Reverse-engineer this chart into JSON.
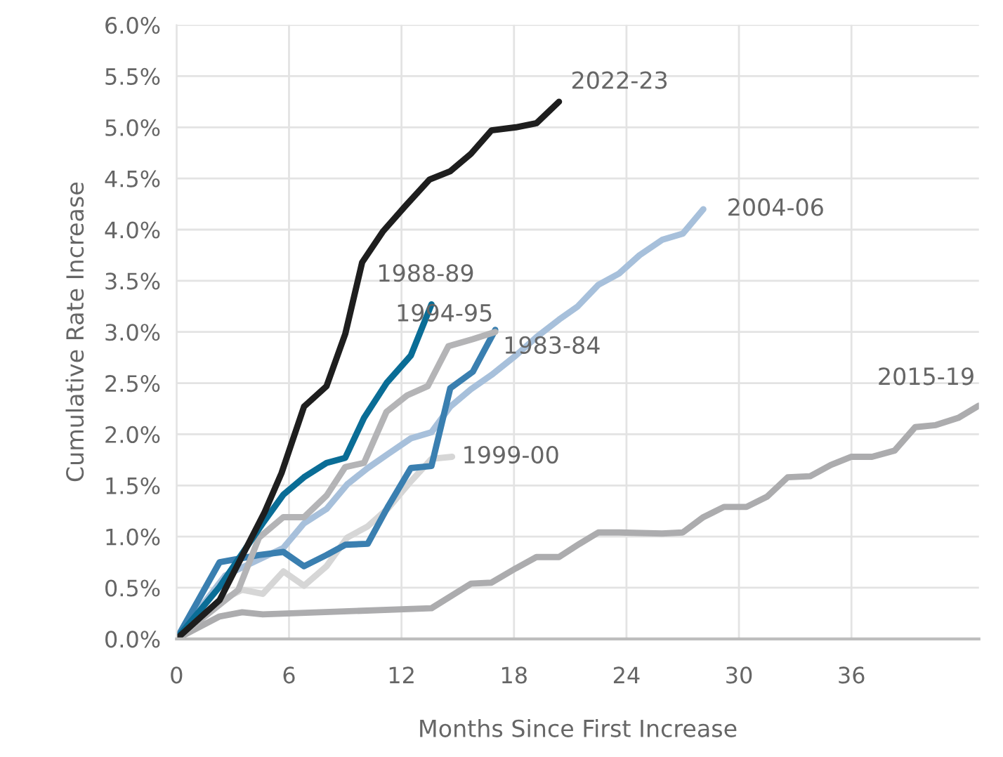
{
  "chart_data": {
    "type": "line",
    "xlabel": "Months Since First Increase",
    "ylabel": "Cumulative Rate Increase",
    "xlim": [
      0,
      42.8
    ],
    "xticks": [
      0,
      6,
      12,
      18,
      24,
      30,
      36
    ],
    "ylim": [
      0,
      6
    ],
    "yticks": [
      {
        "value": 0,
        "label": "0.0%"
      },
      {
        "value": 0.5,
        "label": "0.5%"
      },
      {
        "value": 1,
        "label": "1.0%"
      },
      {
        "value": 1.5,
        "label": "1.5%"
      },
      {
        "value": 2,
        "label": "2.0%"
      },
      {
        "value": 2.5,
        "label": "2.5%"
      },
      {
        "value": 3,
        "label": "3.0%"
      },
      {
        "value": 3.5,
        "label": "3.5%"
      },
      {
        "value": 4,
        "label": "4.0%"
      },
      {
        "value": 4.5,
        "label": "4.5%"
      },
      {
        "value": 5,
        "label": "5.0%"
      },
      {
        "value": 5.5,
        "label": "5.5%"
      },
      {
        "value": 6,
        "label": "6.0%"
      }
    ],
    "grid": true,
    "legend": false,
    "marker": "none",
    "line_style": "solid",
    "series": [
      {
        "name": "2015-19",
        "color": "#acacae",
        "x": [
          0,
          2.3,
          3.5,
          4.6,
          13.6,
          15.7,
          16.8,
          18.1,
          19.2,
          20.4,
          21.5,
          22.5,
          23.6,
          25.9,
          27,
          28.1,
          29.2,
          30.4,
          31.5,
          32.6,
          33.8,
          34.9,
          36,
          37.1,
          38.3,
          39.4,
          40.5,
          41.7,
          42.8
        ],
        "values": [
          0,
          0.22,
          0.26,
          0.24,
          0.3,
          0.54,
          0.55,
          0.69,
          0.8,
          0.8,
          0.93,
          1.04,
          1.04,
          1.03,
          1.04,
          1.19,
          1.29,
          1.29,
          1.39,
          1.58,
          1.59,
          1.7,
          1.78,
          1.78,
          1.84,
          2.07,
          2.09,
          2.16,
          2.28
        ]
      },
      {
        "name": "2004-06",
        "color": "#a7c0db",
        "x": [
          0,
          2.6,
          5.7,
          6.8,
          8,
          9.1,
          10.2,
          11.3,
          12.5,
          13.6,
          14.6,
          15.7,
          16.8,
          18.1,
          19.2,
          20.4,
          21.4,
          22.5,
          23.6,
          24.7,
          25.9,
          27,
          28.1
        ],
        "values": [
          0,
          0.62,
          0.89,
          1.13,
          1.27,
          1.51,
          1.67,
          1.81,
          1.96,
          2.02,
          2.27,
          2.44,
          2.58,
          2.77,
          2.95,
          3.12,
          3.25,
          3.46,
          3.57,
          3.75,
          3.9,
          3.96,
          4.2
        ]
      },
      {
        "name": "1999-00",
        "color": "#d6d6d6",
        "x": [
          0,
          2.3,
          3.5,
          4.6,
          5.7,
          6.8,
          8,
          9.1,
          10.2,
          11.3,
          12.5,
          13.6,
          14.7
        ],
        "values": [
          0,
          0.37,
          0.48,
          0.44,
          0.66,
          0.52,
          0.71,
          0.99,
          1.1,
          1.28,
          1.54,
          1.76,
          1.78
        ]
      },
      {
        "name": "1983-84",
        "color": "#3a7fb0",
        "x": [
          0,
          2.3,
          4.4,
          5.7,
          6.8,
          8,
          9,
          10.2,
          11.3,
          12.5,
          13.6,
          14.6,
          15.8,
          17
        ],
        "values": [
          0,
          0.75,
          0.82,
          0.85,
          0.71,
          0.82,
          0.92,
          0.93,
          1.3,
          1.67,
          1.69,
          2.45,
          2.61,
          3.02
        ]
      },
      {
        "name": "1994-95",
        "color": "#b4b4b6",
        "x": [
          0,
          3.3,
          4.4,
          5.7,
          6.8,
          8,
          9,
          10,
          11.2,
          12.3,
          13.4,
          14.5,
          15.8,
          17
        ],
        "values": [
          0,
          0.48,
          0.99,
          1.19,
          1.19,
          1.4,
          1.68,
          1.72,
          2.22,
          2.38,
          2.47,
          2.86,
          2.93,
          3.0
        ]
      },
      {
        "name": "1988-89",
        "color": "#0a6d96",
        "x": [
          0,
          2.3,
          4.6,
          5.7,
          6.8,
          8,
          9,
          10,
          11.2,
          12.5,
          13.6
        ],
        "values": [
          0,
          0.51,
          1.13,
          1.41,
          1.58,
          1.72,
          1.77,
          2.16,
          2.5,
          2.77,
          3.27
        ]
      },
      {
        "name": "2022-23",
        "color": "#1e1e1e",
        "x": [
          0,
          2.3,
          4.7,
          5.6,
          6.8,
          8,
          9,
          9.9,
          11,
          12.2,
          13.5,
          14.6,
          15.7,
          16.8,
          18.1,
          19.2,
          20.4
        ],
        "values": [
          0,
          0.38,
          1.24,
          1.62,
          2.27,
          2.47,
          2.98,
          3.68,
          3.98,
          4.23,
          4.49,
          4.57,
          4.74,
          4.97,
          5.0,
          5.04,
          5.25
        ]
      }
    ]
  }
}
